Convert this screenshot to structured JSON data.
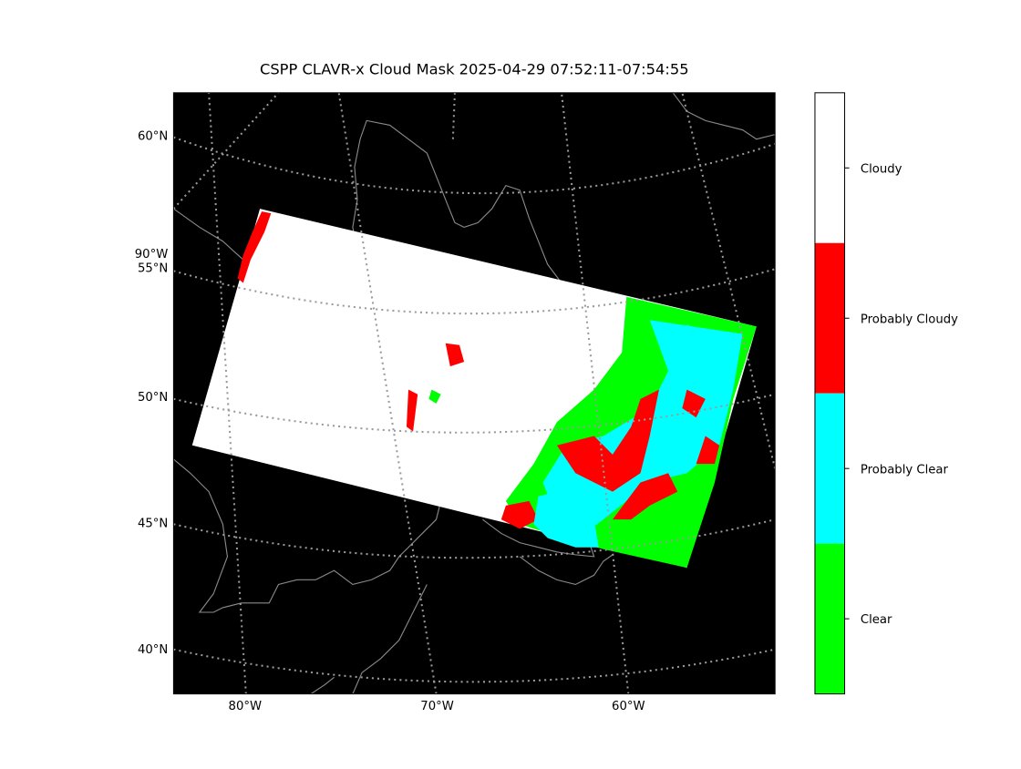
{
  "title": "CSPP CLAVR-x Cloud Mask 2025-04-29 07:52:11-07:54:55",
  "map": {
    "lat_labels": [
      "60°N",
      "55°N",
      "50°N",
      "45°N",
      "40°N"
    ],
    "side_lon_label": "90°W",
    "lon_labels": [
      "80°W",
      "70°W",
      "60°W"
    ]
  },
  "colorbar": {
    "classes": [
      {
        "label": "Cloudy",
        "color": "#ffffff"
      },
      {
        "label": "Probably Cloudy",
        "color": "#ff0000"
      },
      {
        "label": "Probably Clear",
        "color": "#00ffff"
      },
      {
        "label": "Clear",
        "color": "#00ff00"
      }
    ]
  }
}
